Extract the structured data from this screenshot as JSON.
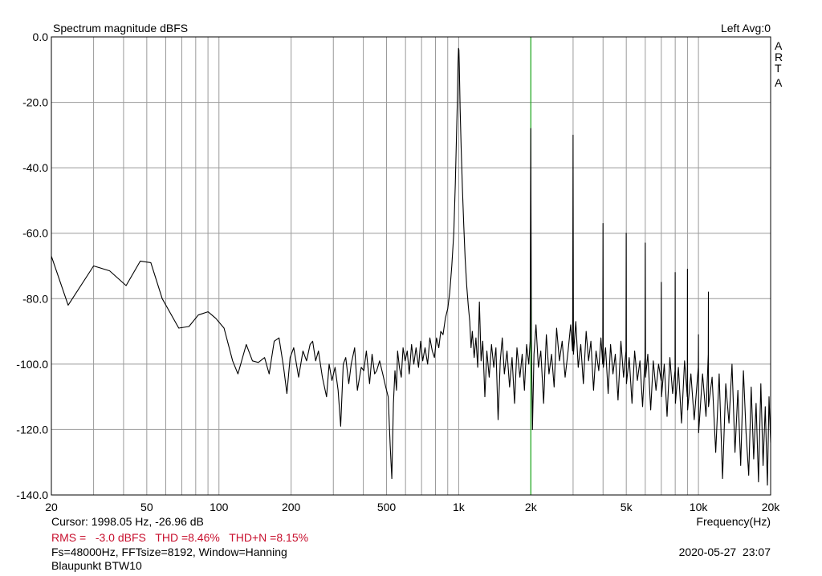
{
  "chart_data": {
    "type": "line",
    "title": "Spectrum magnitude dBFS",
    "channel_info": "Left  Avg:0",
    "brand_letters": [
      "A",
      "R",
      "T",
      "A"
    ],
    "xlabel": "Frequency(Hz)",
    "ylabel": "",
    "x_scale": "log",
    "xlim": [
      20,
      20000
    ],
    "ylim": [
      -140,
      0
    ],
    "grid": true,
    "x_ticks": [
      {
        "value": 20,
        "label": "20"
      },
      {
        "value": 50,
        "label": "50"
      },
      {
        "value": 100,
        "label": "100"
      },
      {
        "value": 200,
        "label": "200"
      },
      {
        "value": 500,
        "label": "500"
      },
      {
        "value": 1000,
        "label": "1k"
      },
      {
        "value": 2000,
        "label": "2k"
      },
      {
        "value": 5000,
        "label": "5k"
      },
      {
        "value": 10000,
        "label": "10k"
      },
      {
        "value": 20000,
        "label": "20k"
      }
    ],
    "y_ticks": [
      {
        "value": 0,
        "label": "0.0"
      },
      {
        "value": -20,
        "label": "-20.0"
      },
      {
        "value": -40,
        "label": "-40.0"
      },
      {
        "value": -60,
        "label": "-60.0"
      },
      {
        "value": -80,
        "label": "-80.0"
      },
      {
        "value": -100,
        "label": "-100.0"
      },
      {
        "value": -120,
        "label": "-120.0"
      },
      {
        "value": -140,
        "label": "-140.0"
      }
    ],
    "cursor": {
      "frequency": 1998.05,
      "level": -26.96,
      "color": "#00aa00"
    },
    "series": [
      {
        "color": "#000000",
        "points": [
          [
            20,
            -67
          ],
          [
            23.5,
            -82
          ],
          [
            30,
            -70
          ],
          [
            35,
            -71.5
          ],
          [
            41,
            -76
          ],
          [
            47,
            -68.5
          ],
          [
            52,
            -69
          ],
          [
            58,
            -80
          ],
          [
            68,
            -89
          ],
          [
            75,
            -88.5
          ],
          [
            82,
            -85
          ],
          [
            90,
            -84
          ],
          [
            97,
            -86
          ],
          [
            105,
            -89
          ],
          [
            114,
            -99
          ],
          [
            120,
            -103
          ],
          [
            130,
            -94
          ],
          [
            138,
            -99
          ],
          [
            146,
            -99.5
          ],
          [
            155,
            -98
          ],
          [
            162,
            -103
          ],
          [
            170,
            -93
          ],
          [
            178,
            -92
          ],
          [
            186,
            -101
          ],
          [
            192,
            -109
          ],
          [
            198,
            -98
          ],
          [
            205,
            -95
          ],
          [
            215,
            -104
          ],
          [
            224,
            -96
          ],
          [
            232,
            -99
          ],
          [
            240,
            -94
          ],
          [
            246,
            -93
          ],
          [
            253,
            -99
          ],
          [
            260,
            -96
          ],
          [
            270,
            -104
          ],
          [
            281,
            -110
          ],
          [
            288,
            -100
          ],
          [
            296,
            -105
          ],
          [
            305,
            -101
          ],
          [
            314,
            -108
          ],
          [
            322,
            -119
          ],
          [
            330,
            -100
          ],
          [
            338,
            -98
          ],
          [
            348,
            -106
          ],
          [
            356,
            -100
          ],
          [
            368,
            -95
          ],
          [
            378,
            -108
          ],
          [
            392,
            -101
          ],
          [
            402,
            -102
          ],
          [
            412,
            -96
          ],
          [
            425,
            -106
          ],
          [
            435,
            -97
          ],
          [
            446,
            -103
          ],
          [
            455,
            -102
          ],
          [
            468,
            -99
          ],
          [
            482,
            -103
          ],
          [
            496,
            -107
          ],
          [
            508,
            -110
          ],
          [
            518,
            -125
          ],
          [
            526,
            -135
          ],
          [
            534,
            -112
          ],
          [
            542,
            -102
          ],
          [
            550,
            -108
          ],
          [
            556,
            -96
          ],
          [
            566,
            -101
          ],
          [
            576,
            -104
          ],
          [
            586,
            -95
          ],
          [
            598,
            -99
          ],
          [
            610,
            -96
          ],
          [
            622,
            -103
          ],
          [
            636,
            -94
          ],
          [
            650,
            -100
          ],
          [
            664,
            -95
          ],
          [
            680,
            -101
          ],
          [
            694,
            -93
          ],
          [
            708,
            -99
          ],
          [
            724,
            -95
          ],
          [
            742,
            -100
          ],
          [
            758,
            -92
          ],
          [
            776,
            -96
          ],
          [
            792,
            -98
          ],
          [
            808,
            -92
          ],
          [
            826,
            -95
          ],
          [
            842,
            -90
          ],
          [
            860,
            -91
          ],
          [
            880,
            -86
          ],
          [
            900,
            -83
          ],
          [
            918,
            -78
          ],
          [
            936,
            -70
          ],
          [
            954,
            -60
          ],
          [
            968,
            -45
          ],
          [
            978,
            -32
          ],
          [
            988,
            -18
          ],
          [
            994,
            -8
          ],
          [
            998,
            -3.5
          ],
          [
            1002,
            -4
          ],
          [
            1006,
            -9
          ],
          [
            1014,
            -22
          ],
          [
            1024,
            -34
          ],
          [
            1036,
            -46
          ],
          [
            1050,
            -58
          ],
          [
            1064,
            -68
          ],
          [
            1080,
            -76
          ],
          [
            1096,
            -82
          ],
          [
            1112,
            -87
          ],
          [
            1126,
            -95
          ],
          [
            1140,
            -90
          ],
          [
            1160,
            -98
          ],
          [
            1180,
            -92
          ],
          [
            1200,
            -101
          ],
          [
            1220,
            -81
          ],
          [
            1240,
            -99
          ],
          [
            1260,
            -93
          ],
          [
            1285,
            -110
          ],
          [
            1310,
            -96
          ],
          [
            1340,
            -104
          ],
          [
            1370,
            -94
          ],
          [
            1400,
            -101
          ],
          [
            1430,
            -95
          ],
          [
            1460,
            -117
          ],
          [
            1490,
            -99
          ],
          [
            1520,
            -92
          ],
          [
            1550,
            -103
          ],
          [
            1590,
            -96
          ],
          [
            1630,
            -107
          ],
          [
            1670,
            -98
          ],
          [
            1710,
            -112
          ],
          [
            1750,
            -95
          ],
          [
            1800,
            -104
          ],
          [
            1840,
            -97
          ],
          [
            1880,
            -108
          ],
          [
            1920,
            -94
          ],
          [
            1960,
            -100
          ],
          [
            1986,
            -93
          ],
          [
            1998,
            -28
          ],
          [
            2010,
            -92
          ],
          [
            2030,
            -120
          ],
          [
            2060,
            -97
          ],
          [
            2100,
            -88
          ],
          [
            2150,
            -101
          ],
          [
            2200,
            -96
          ],
          [
            2260,
            -112
          ],
          [
            2320,
            -91
          ],
          [
            2380,
            -103
          ],
          [
            2440,
            -97
          ],
          [
            2500,
            -107
          ],
          [
            2560,
            -89
          ],
          [
            2630,
            -99
          ],
          [
            2700,
            -93
          ],
          [
            2780,
            -104
          ],
          [
            2860,
            -96
          ],
          [
            2930,
            -88
          ],
          [
            2985,
            -96
          ],
          [
            2999,
            -30
          ],
          [
            3012,
            -97
          ],
          [
            3080,
            -87
          ],
          [
            3150,
            -101
          ],
          [
            3230,
            -94
          ],
          [
            3310,
            -106
          ],
          [
            3400,
            -90
          ],
          [
            3480,
            -99
          ],
          [
            3560,
            -93
          ],
          [
            3650,
            -108
          ],
          [
            3740,
            -96
          ],
          [
            3840,
            -102
          ],
          [
            3920,
            -92
          ],
          [
            3985,
            -100
          ],
          [
            3998,
            -57
          ],
          [
            4010,
            -101
          ],
          [
            4100,
            -95
          ],
          [
            4200,
            -109
          ],
          [
            4300,
            -94
          ],
          [
            4400,
            -103
          ],
          [
            4500,
            -97
          ],
          [
            4620,
            -111
          ],
          [
            4750,
            -93
          ],
          [
            4870,
            -104
          ],
          [
            4985,
            -96
          ],
          [
            4998,
            -60
          ],
          [
            5010,
            -106
          ],
          [
            5140,
            -98
          ],
          [
            5280,
            -112
          ],
          [
            5420,
            -96
          ],
          [
            5560,
            -105
          ],
          [
            5700,
            -99
          ],
          [
            5850,
            -113
          ],
          [
            5985,
            -98
          ],
          [
            6000,
            -63
          ],
          [
            6015,
            -104
          ],
          [
            6150,
            -97
          ],
          [
            6320,
            -114
          ],
          [
            6480,
            -99
          ],
          [
            6650,
            -108
          ],
          [
            6820,
            -100
          ],
          [
            6985,
            -105
          ],
          [
            7000,
            -75
          ],
          [
            7015,
            -110
          ],
          [
            7200,
            -100
          ],
          [
            7400,
            -116
          ],
          [
            7600,
            -98
          ],
          [
            7800,
            -109
          ],
          [
            7985,
            -102
          ],
          [
            8000,
            -72
          ],
          [
            8015,
            -112
          ],
          [
            8250,
            -101
          ],
          [
            8500,
            -118
          ],
          [
            8750,
            -99
          ],
          [
            8985,
            -110
          ],
          [
            9000,
            -71
          ],
          [
            9015,
            -114
          ],
          [
            9300,
            -103
          ],
          [
            9600,
            -117
          ],
          [
            9985,
            -101
          ],
          [
            10000,
            -91
          ],
          [
            10015,
            -121
          ],
          [
            10400,
            -103
          ],
          [
            10750,
            -116
          ],
          [
            10985,
            -97
          ],
          [
            11000,
            -78
          ],
          [
            11015,
            -113
          ],
          [
            11400,
            -104
          ],
          [
            11800,
            -127
          ],
          [
            12200,
            -103
          ],
          [
            12600,
            -135
          ],
          [
            13000,
            -106
          ],
          [
            13400,
            -118
          ],
          [
            13800,
            -100
          ],
          [
            14200,
            -127
          ],
          [
            14600,
            -108
          ],
          [
            15000,
            -131
          ],
          [
            15400,
            -102
          ],
          [
            15800,
            -121
          ],
          [
            16200,
            -134
          ],
          [
            16600,
            -107
          ],
          [
            17000,
            -129
          ],
          [
            17400,
            -112
          ],
          [
            17800,
            -136
          ],
          [
            18200,
            -106
          ],
          [
            18600,
            -131
          ],
          [
            19000,
            -113
          ],
          [
            19400,
            -137
          ],
          [
            19700,
            -110
          ],
          [
            20000,
            -124
          ]
        ]
      }
    ]
  },
  "footer": {
    "cursor_text": "Cursor: 1998.05 Hz, -26.96 dB",
    "measurements_text": "RMS =   -3.0 dBFS   THD =8.46%   THD+N =8.15%",
    "measurement_color": "#c8102e",
    "params_text": "Fs=48000Hz, FFTsize=8192, Window=Hanning",
    "device_name": "Blaupunkt BTW10",
    "timestamp": "2020-05-27  23:07"
  }
}
